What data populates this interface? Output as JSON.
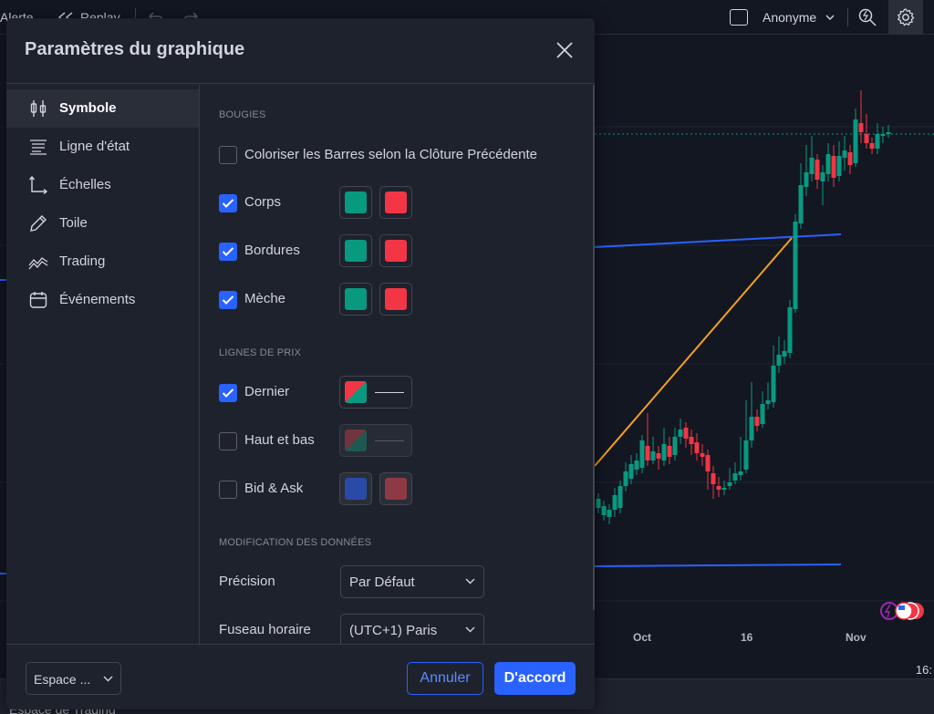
{
  "topbar": {
    "alert_label": "Alerte",
    "replay_label": "Replay",
    "user_label": "Anonyme"
  },
  "chart": {
    "x_ticks": [
      "Oct",
      "16",
      "Nov"
    ],
    "time": "16:",
    "workspace_label": "Espace de Trading",
    "colors": {
      "up": "#089981",
      "down": "#f23645",
      "trend_orange": "#f7a21b",
      "trend_blue": "#2962ff"
    }
  },
  "dialog": {
    "title": "Paramètres du graphique",
    "sidebar": [
      {
        "label": "Symbole",
        "icon": "candles-icon",
        "active": true
      },
      {
        "label": "Ligne d'état",
        "icon": "status-line-icon",
        "active": false
      },
      {
        "label": "Échelles",
        "icon": "scales-icon",
        "active": false
      },
      {
        "label": "Toile",
        "icon": "canvas-pencil-icon",
        "active": false
      },
      {
        "label": "Trading",
        "icon": "trading-icon",
        "active": false
      },
      {
        "label": "Événements",
        "icon": "calendar-icon",
        "active": false
      }
    ],
    "sections": {
      "bougies": "BOUGIES",
      "lignes_prix": "LIGNES DE PRIX",
      "modification": "MODIFICATION DES DONNÉES"
    },
    "rows": {
      "colorize": {
        "label": "Coloriser les Barres selon la Clôture Précédente",
        "checked": false
      },
      "corps": {
        "label": "Corps",
        "checked": true,
        "up": "#089981",
        "down": "#f23645"
      },
      "bordures": {
        "label": "Bordures",
        "checked": true,
        "up": "#089981",
        "down": "#f23645"
      },
      "meche": {
        "label": "Mèche",
        "checked": true,
        "up": "#089981",
        "down": "#f23645"
      },
      "dernier": {
        "label": "Dernier",
        "checked": true
      },
      "haut_bas": {
        "label": "Haut et bas",
        "checked": false
      },
      "bid_ask": {
        "label": "Bid & Ask",
        "checked": false,
        "bid": "#2a4aa8",
        "ask": "#8e3a44"
      }
    },
    "precision": {
      "label": "Précision",
      "value": "Par Défaut"
    },
    "timezone": {
      "label": "Fuseau horaire",
      "value": "(UTC+1) Paris"
    },
    "footer": {
      "workspace_value": "Espace ...",
      "cancel": "Annuler",
      "ok": "D'accord"
    }
  }
}
